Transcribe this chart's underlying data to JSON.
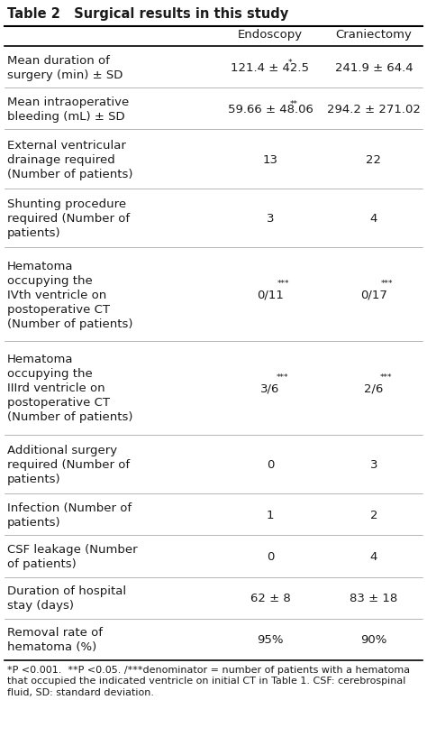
{
  "title": "Table 2   Surgical results in this study",
  "col_headers": [
    "",
    "Endoscopy",
    "Craniectomy"
  ],
  "rows": [
    {
      "label": "Mean duration of\nsurgery (min) ± SD",
      "endoscopy": "121.4 ± 42.5",
      "endo_sup": "*",
      "craniectomy": "241.9 ± 64.4",
      "crani_sup": ""
    },
    {
      "label": "Mean intraoperative\nbleeding (mL) ± SD",
      "endoscopy": "59.66 ± 48.06",
      "endo_sup": "**",
      "craniectomy": "294.2 ± 271.02",
      "crani_sup": ""
    },
    {
      "label": "External ventricular\ndrainage required\n(Number of patients)",
      "endoscopy": "13",
      "endo_sup": "",
      "craniectomy": "22",
      "crani_sup": ""
    },
    {
      "label": "Shunting procedure\nrequired (Number of\npatients)",
      "endoscopy": "3",
      "endo_sup": "",
      "craniectomy": "4",
      "crani_sup": ""
    },
    {
      "label": "Hematoma\noccupying the\nIVth ventricle on\npostoperative CT\n(Number of patients)",
      "endoscopy": "0/11",
      "endo_sup": "***",
      "craniectomy": "0/17",
      "crani_sup": "***"
    },
    {
      "label": "Hematoma\noccupying the\nIIIrd ventricle on\npostoperative CT\n(Number of patients)",
      "endoscopy": "3/6",
      "endo_sup": "***",
      "craniectomy": "2/6",
      "crani_sup": "***"
    },
    {
      "label": "Additional surgery\nrequired (Number of\npatients)",
      "endoscopy": "0",
      "endo_sup": "",
      "craniectomy": "3",
      "crani_sup": ""
    },
    {
      "label": "Infection (Number of\npatients)",
      "endoscopy": "1",
      "endo_sup": "",
      "craniectomy": "2",
      "crani_sup": ""
    },
    {
      "label": "CSF leakage (Number\nof patients)",
      "endoscopy": "0",
      "endo_sup": "",
      "craniectomy": "4",
      "crani_sup": ""
    },
    {
      "label": "Duration of hospital\nstay (days)",
      "endoscopy": "62 ± 8",
      "endo_sup": "",
      "craniectomy": "83 ± 18",
      "crani_sup": ""
    },
    {
      "label": "Removal rate of\nhematoma (%)",
      "endoscopy": "95%",
      "endo_sup": "",
      "craniectomy": "90%",
      "crani_sup": ""
    }
  ],
  "footnote": "*P <0.001.  **P <0.05. /***denominator = number of patients with a hematoma that occupied the indicated ventricle on initial CT in Table 1. CSF: cerebrospinal fluid, SD: standard deviation.",
  "bg_color": "#ffffff",
  "text_color": "#1a1a1a",
  "header_line_color": "#000000",
  "font_size": 9.5,
  "title_font_size": 10.5,
  "footnote_font_size": 8.0,
  "row_line_counts": [
    2,
    2,
    3,
    3,
    5,
    5,
    3,
    2,
    2,
    2,
    2
  ]
}
